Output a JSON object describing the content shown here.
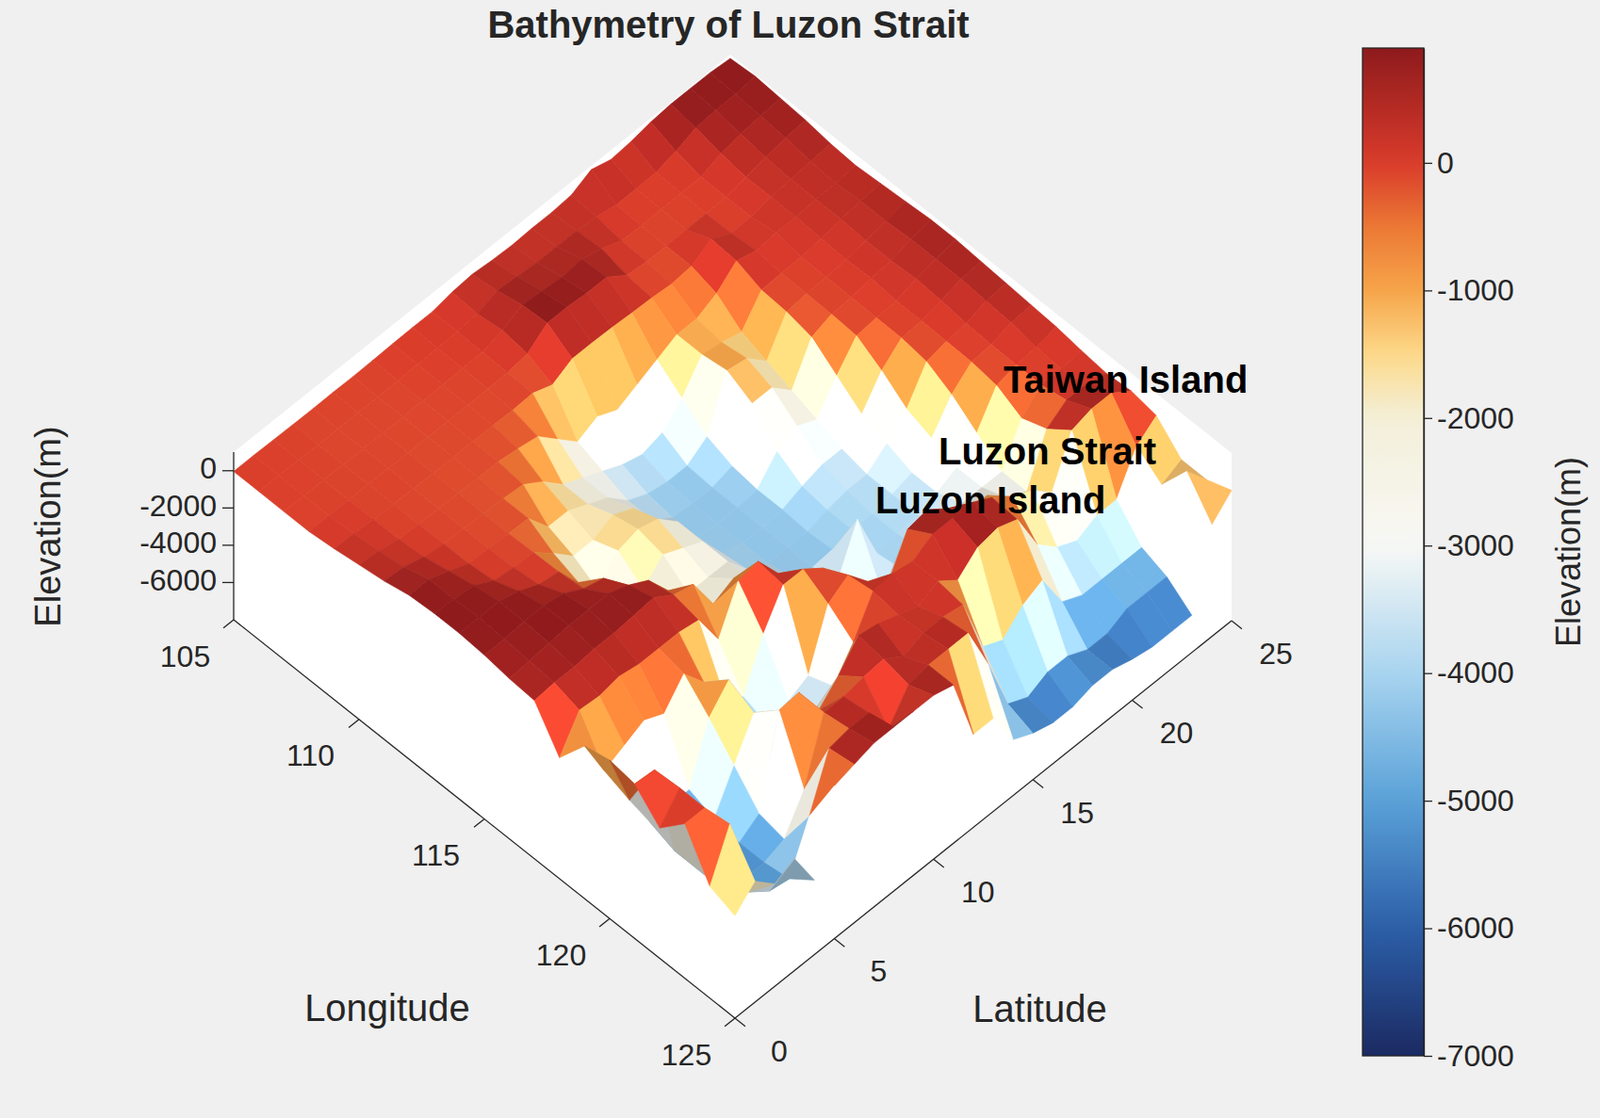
{
  "chart_data": {
    "type": "surface",
    "title": "Bathymetry of Luzon Strait",
    "x_label": "Longitude",
    "y_label": "Latitude",
    "z_label": "Elevation(m)",
    "x": [
      105,
      106,
      107,
      108,
      109,
      110,
      111,
      112,
      113,
      114,
      115,
      116,
      117,
      118,
      119,
      120,
      121,
      122,
      123,
      124,
      125
    ],
    "y": [
      0,
      1,
      2,
      3,
      4,
      5,
      6,
      7,
      8,
      9,
      10,
      11,
      12,
      13,
      14,
      15,
      16,
      17,
      18,
      19,
      20,
      21,
      22,
      23,
      24,
      25
    ],
    "z": [
      [
        -40,
        -40,
        -50,
        -50,
        100,
        300,
        500,
        800,
        900,
        900,
        800,
        600,
        500,
        -1500,
        200,
        500,
        300,
        -1000,
        300,
        -2000,
        -2500
      ],
      [
        -30,
        -40,
        -50,
        -60,
        50,
        200,
        400,
        800,
        800,
        900,
        800,
        700,
        600,
        200,
        -2000,
        -2500,
        200,
        300,
        300,
        500,
        -1500
      ],
      [
        -50,
        -50,
        -60,
        -60,
        -40,
        -40,
        100,
        400,
        700,
        900,
        900,
        800,
        600,
        100,
        -1500,
        -4500,
        -5000,
        -5000,
        -5000,
        -4000,
        -2500
      ],
      [
        -70,
        -80,
        -90,
        -80,
        -80,
        -80,
        -60,
        -50,
        100,
        600,
        900,
        900,
        700,
        300,
        -1000,
        -4500,
        -5200,
        -5300,
        -5200,
        -4800,
        -2000
      ],
      [
        -80,
        -90,
        -100,
        -50,
        -100,
        -100,
        -100,
        -80,
        -50,
        100,
        700,
        900,
        700,
        100,
        -1500,
        -4500,
        -5000,
        -5200,
        -5200,
        -5000,
        -4000
      ],
      [
        -60,
        -80,
        -100,
        -110,
        -120,
        -130,
        -150,
        -150,
        -100,
        -60,
        100,
        900,
        800,
        100,
        -200,
        -1500,
        -3000,
        -4500,
        -4800,
        -2500,
        200
      ],
      [
        -70,
        -90,
        -100,
        -110,
        -120,
        -150,
        -200,
        -200,
        -1000,
        -1500,
        -200,
        500,
        900,
        100,
        -1500,
        -300,
        -1000,
        200,
        -3000,
        300,
        500
      ],
      [
        -50,
        -60,
        -80,
        -100,
        -120,
        -150,
        -300,
        -1500,
        -2000,
        -2800,
        -2000,
        -100,
        200,
        -100,
        -3000,
        -4500,
        -4500,
        300,
        300,
        500,
        800
      ],
      [
        -20,
        -40,
        -70,
        -90,
        -120,
        -300,
        -1000,
        -1500,
        -2000,
        -1500,
        -2500,
        -1500,
        -100,
        -2000,
        -4000,
        -4500,
        -4000,
        -1500,
        300,
        500,
        800
      ],
      [
        5,
        -20,
        -50,
        -80,
        -150,
        -500,
        -2000,
        -2000,
        -1500,
        -1200,
        -1500,
        -2500,
        -2000,
        300,
        -1500,
        -4000,
        -3500,
        -500,
        500,
        -1200,
        800
      ],
      [
        5,
        5,
        -20,
        -50,
        -100,
        -1500,
        -2500,
        -2500,
        -2000,
        -1500,
        -2000,
        -2500,
        -1500,
        500,
        300,
        -3500,
        -3000,
        800,
        600,
        300,
        800
      ],
      [
        200,
        100,
        300,
        100,
        -500,
        -2500,
        -3000,
        -3500,
        -3500,
        -2500,
        -2500,
        -2500,
        -2500,
        -1000,
        300,
        -500,
        -1500,
        600,
        -100,
        500,
        500
      ],
      [
        300,
        500,
        800,
        900,
        50,
        -2000,
        -3500,
        -4000,
        -4200,
        -4200,
        -4000,
        -3800,
        -3000,
        -2000,
        -500,
        200,
        400,
        200,
        300,
        500,
        -3000
      ],
      [
        200,
        400,
        700,
        900,
        50,
        -2500,
        -3800,
        -4200,
        -4300,
        -4300,
        -4300,
        -4300,
        -4000,
        -3500,
        -2000,
        -1000,
        500,
        -200,
        300,
        500,
        -3000
      ],
      [
        150,
        300,
        600,
        800,
        20,
        -2000,
        -3500,
        -4200,
        -4300,
        -4300,
        -4300,
        -4300,
        -4300,
        -4000,
        -4000,
        -2000,
        300,
        300,
        100,
        -2000,
        -5000
      ],
      [
        200,
        300,
        700,
        800,
        -50,
        -1500,
        -2500,
        -3500,
        -4000,
        -4200,
        -4200,
        -4300,
        -4200,
        -1500,
        -4500,
        100,
        900,
        -500,
        -3000,
        -5000,
        -5500
      ],
      [
        200,
        300,
        400,
        50,
        -100,
        -1000,
        -1000,
        -800,
        -1500,
        -3000,
        -3800,
        -4000,
        -4000,
        -4200,
        -4000,
        300,
        900,
        400,
        -3500,
        -5500,
        -5800
      ],
      [
        300,
        200,
        -20,
        -70,
        -200,
        -1000,
        -1200,
        -1000,
        -1500,
        -2500,
        -3500,
        -3800,
        -4000,
        -4000,
        -3800,
        -500,
        900,
        600,
        -2500,
        -5000,
        -5800
      ],
      [
        800,
        -20,
        -60,
        -90,
        -100,
        -500,
        -1500,
        -2000,
        -2500,
        -3000,
        -3500,
        -3800,
        -3800,
        -3800,
        -3500,
        -1500,
        300,
        200,
        -2000,
        -5000,
        -5500
      ],
      [
        500,
        -20,
        -50,
        -70,
        500,
        400,
        -100,
        -200,
        -500,
        -1500,
        -2500,
        -3000,
        -3500,
        -3500,
        -3000,
        -1500,
        -500,
        -2000,
        -4000,
        -5500,
        -5500
      ],
      [
        600,
        10,
        -30,
        -60,
        -30,
        100,
        -50,
        -80,
        -100,
        -200,
        -1000,
        -2000,
        -2500,
        -3000,
        -3000,
        -2500,
        -1000,
        -3000,
        -4500,
        -5500,
        -5800
      ],
      [
        800,
        300,
        -10,
        -30,
        -20,
        200,
        -30,
        -50,
        -60,
        -80,
        -100,
        -300,
        -1000,
        -2000,
        -3000,
        -3000,
        -2000,
        -3500,
        -4500,
        -5000,
        -6000
      ],
      [
        900,
        700,
        400,
        200,
        200,
        200,
        100,
        50,
        100,
        -20,
        -30,
        -60,
        -100,
        -300,
        -1000,
        -500,
        500,
        -3000,
        -4500,
        -5000,
        -6000
      ],
      [
        900,
        800,
        600,
        400,
        300,
        300,
        300,
        200,
        200,
        300,
        200,
        50,
        -20,
        -40,
        -60,
        200,
        800,
        -3000,
        -4500,
        -5000,
        -6000
      ],
      [
        900,
        800,
        700,
        600,
        400,
        300,
        400,
        400,
        500,
        500,
        500,
        400,
        300,
        50,
        -50,
        200,
        800,
        -1000,
        -2000,
        -200,
        -2000
      ],
      [
        800,
        900,
        800,
        700,
        500,
        400,
        500,
        600,
        700,
        700,
        600,
        500,
        400,
        300,
        100,
        -60,
        50,
        -200,
        -1500,
        -1500,
        -1000
      ]
    ],
    "xlim": [
      105,
      125
    ],
    "ylim": [
      0,
      25
    ],
    "zlim": [
      -8000,
      1000
    ],
    "xticks": [
      105,
      110,
      115,
      120,
      125
    ],
    "yticks": [
      0,
      5,
      10,
      15,
      20,
      25
    ],
    "zticks": [
      0,
      -2000,
      -4000,
      -6000
    ],
    "clim": [
      -7000,
      900
    ],
    "cticks": [
      0,
      -1000,
      -2000,
      -3000,
      -4000,
      -5000,
      -6000,
      -7000
    ],
    "colorbar_label": "Elevation(m)",
    "annotations": [
      "Taiwan Island",
      "Luzon Strait",
      "Luzon Island"
    ]
  }
}
